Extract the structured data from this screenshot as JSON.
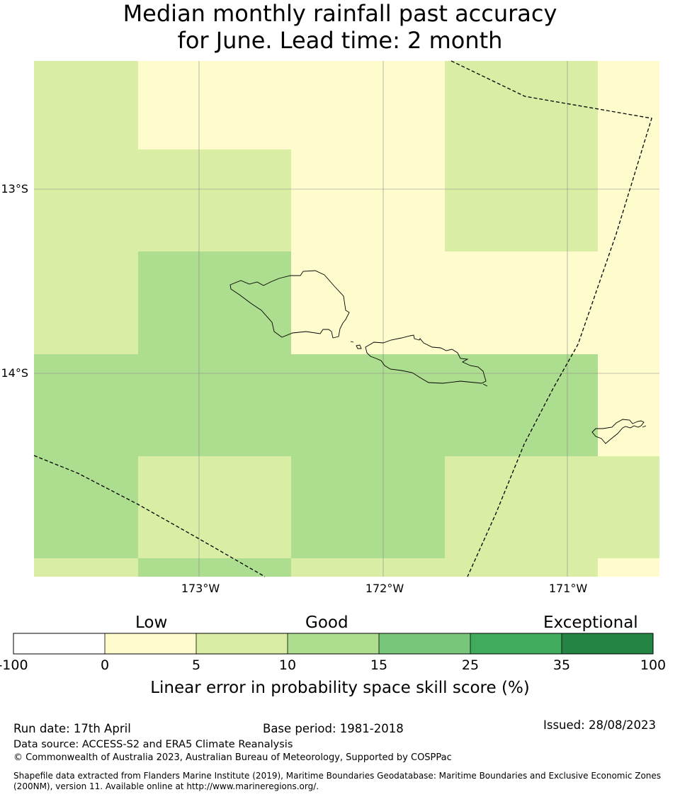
{
  "title": {
    "line1": "Median monthly rainfall past accuracy",
    "line2": "for June. Lead time: 2 month"
  },
  "map": {
    "lat_labels": [
      "13°S",
      "14°S"
    ],
    "lon_labels": [
      "173°W",
      "172°W",
      "171°W"
    ],
    "palette": {
      "c0_5": "#fefccd",
      "c5_10": "#d9eea4",
      "c10_15": "#addd8e",
      "c15_25": "#78c679",
      "c25_35": "#41ab5d",
      "c35_100": "#238443",
      "boundary": "#000000",
      "gridline": "#888888"
    }
  },
  "colorbar": {
    "categories": [
      "Low",
      "Good",
      "Exceptional"
    ],
    "ticks": [
      "-100",
      "0",
      "5",
      "10",
      "15",
      "25",
      "35",
      "100"
    ],
    "colors": [
      "#ffffff",
      "#fefccd",
      "#d9eea4",
      "#addd8e",
      "#78c679",
      "#41ab5d",
      "#238443"
    ],
    "label": "Linear error in probability space skill score (%)"
  },
  "footer": {
    "run_date": "Run date: 17th April",
    "base_period": "Base period: 1981-2018",
    "issued": "Issued: 28/08/2023",
    "data_source": "Data source: ACCESS-S2 and ERA5 Climate Reanalysis",
    "copyright": "© Commonwealth of Australia 2023, Australian Bureau of Meteorology, Supported by COSPPac",
    "shapefile_line1": "Shapefile data extracted from Flanders Marine Institute (2019), Maritime Boundaries Geodatabase: Maritime Boundaries and Exclusive Economic Zones",
    "shapefile_line2": "(200NM), version 11. Available online at http://www.marineregions.org/."
  }
}
